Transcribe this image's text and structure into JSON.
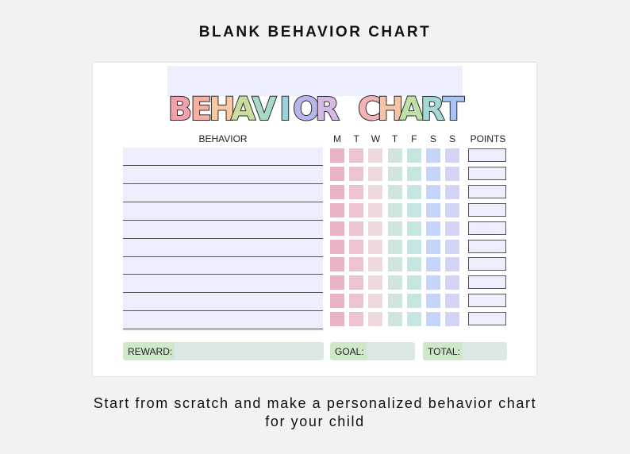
{
  "page": {
    "heading": "BLANK BEHAVIOR CHART",
    "caption_line1": "Start from scratch and make a personalized behavior chart",
    "caption_line2": "for your child"
  },
  "chart": {
    "title_letters": [
      {
        "ch": "B",
        "color": "#f2a2ad"
      },
      {
        "ch": "E",
        "color": "#f5b0a6"
      },
      {
        "ch": "H",
        "color": "#f7c9a3"
      },
      {
        "ch": "A",
        "color": "#c9dd9c"
      },
      {
        "ch": "V",
        "color": "#a8d9c4"
      },
      {
        "ch": "I",
        "color": "#9dd1d6"
      },
      {
        "ch": "O",
        "color": "#b7b6ea"
      },
      {
        "ch": "R",
        "color": "#d7b9e6"
      },
      {
        "ch": " ",
        "color": "#ffffff"
      },
      {
        "ch": "C",
        "color": "#f4b3b6"
      },
      {
        "ch": "H",
        "color": "#f6c3a7"
      },
      {
        "ch": "A",
        "color": "#bfe0a8"
      },
      {
        "ch": "R",
        "color": "#a5d8d5"
      },
      {
        "ch": "T",
        "color": "#a9c3f2"
      }
    ],
    "behavior_header": "BEHAVIOR",
    "days": [
      {
        "label": "M",
        "color": "#e9b3c4"
      },
      {
        "label": "T",
        "color": "#ecc4cf"
      },
      {
        "label": "W",
        "color": "#edd8dc"
      },
      {
        "label": "T",
        "color": "#cfe4de"
      },
      {
        "label": "F",
        "color": "#c4e6e3"
      },
      {
        "label": "S",
        "color": "#c6d4fa"
      },
      {
        "label": "S",
        "color": "#d2d4f6"
      }
    ],
    "points_header": "POINTS",
    "row_count": 10,
    "reward_label": "REWARD:",
    "goal_label": "GOAL:",
    "total_label": "TOTAL:"
  }
}
